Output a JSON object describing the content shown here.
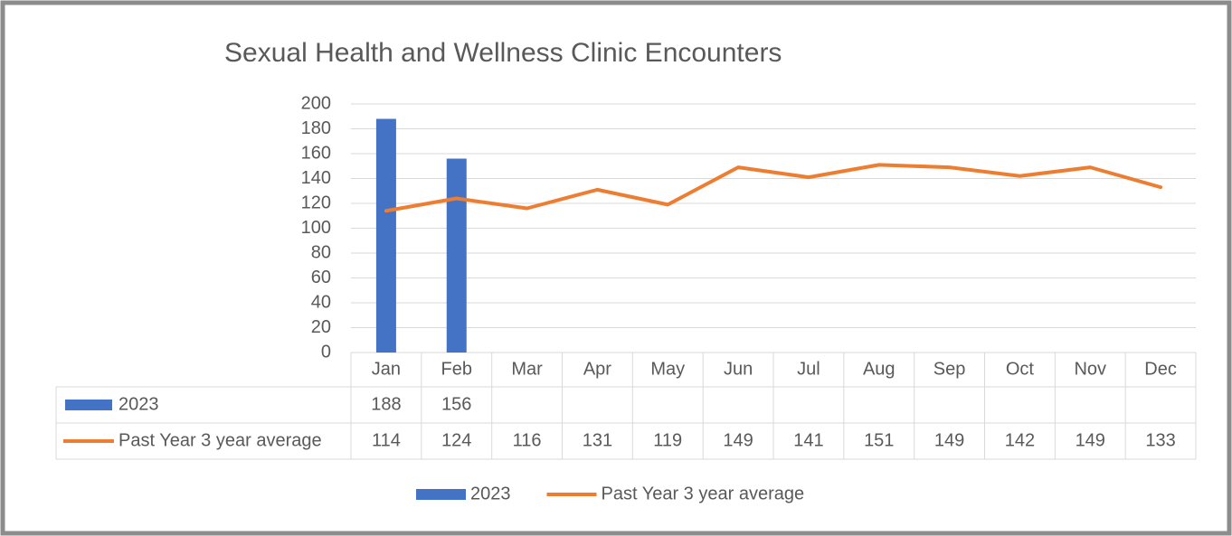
{
  "chart_data": {
    "type": "combo",
    "title": "Sexual Health and Wellness Clinic Encounters",
    "categories": [
      "Jan",
      "Feb",
      "Mar",
      "Apr",
      "May",
      "Jun",
      "Jul",
      "Aug",
      "Sep",
      "Oct",
      "Nov",
      "Dec"
    ],
    "series": [
      {
        "name": "2023",
        "type": "bar",
        "color": "#4472c4",
        "values": [
          188,
          156,
          null,
          null,
          null,
          null,
          null,
          null,
          null,
          null,
          null,
          null
        ]
      },
      {
        "name": "Past Year 3 year average",
        "type": "line",
        "color": "#ed7d31",
        "values": [
          114,
          124,
          116,
          131,
          119,
          149,
          141,
          151,
          149,
          142,
          149,
          133
        ]
      }
    ],
    "ylim": [
      0,
      200
    ],
    "yticks": [
      0,
      20,
      40,
      60,
      80,
      100,
      120,
      140,
      160,
      180,
      200
    ],
    "grid": true,
    "legend": "bottom",
    "data_table": true
  }
}
